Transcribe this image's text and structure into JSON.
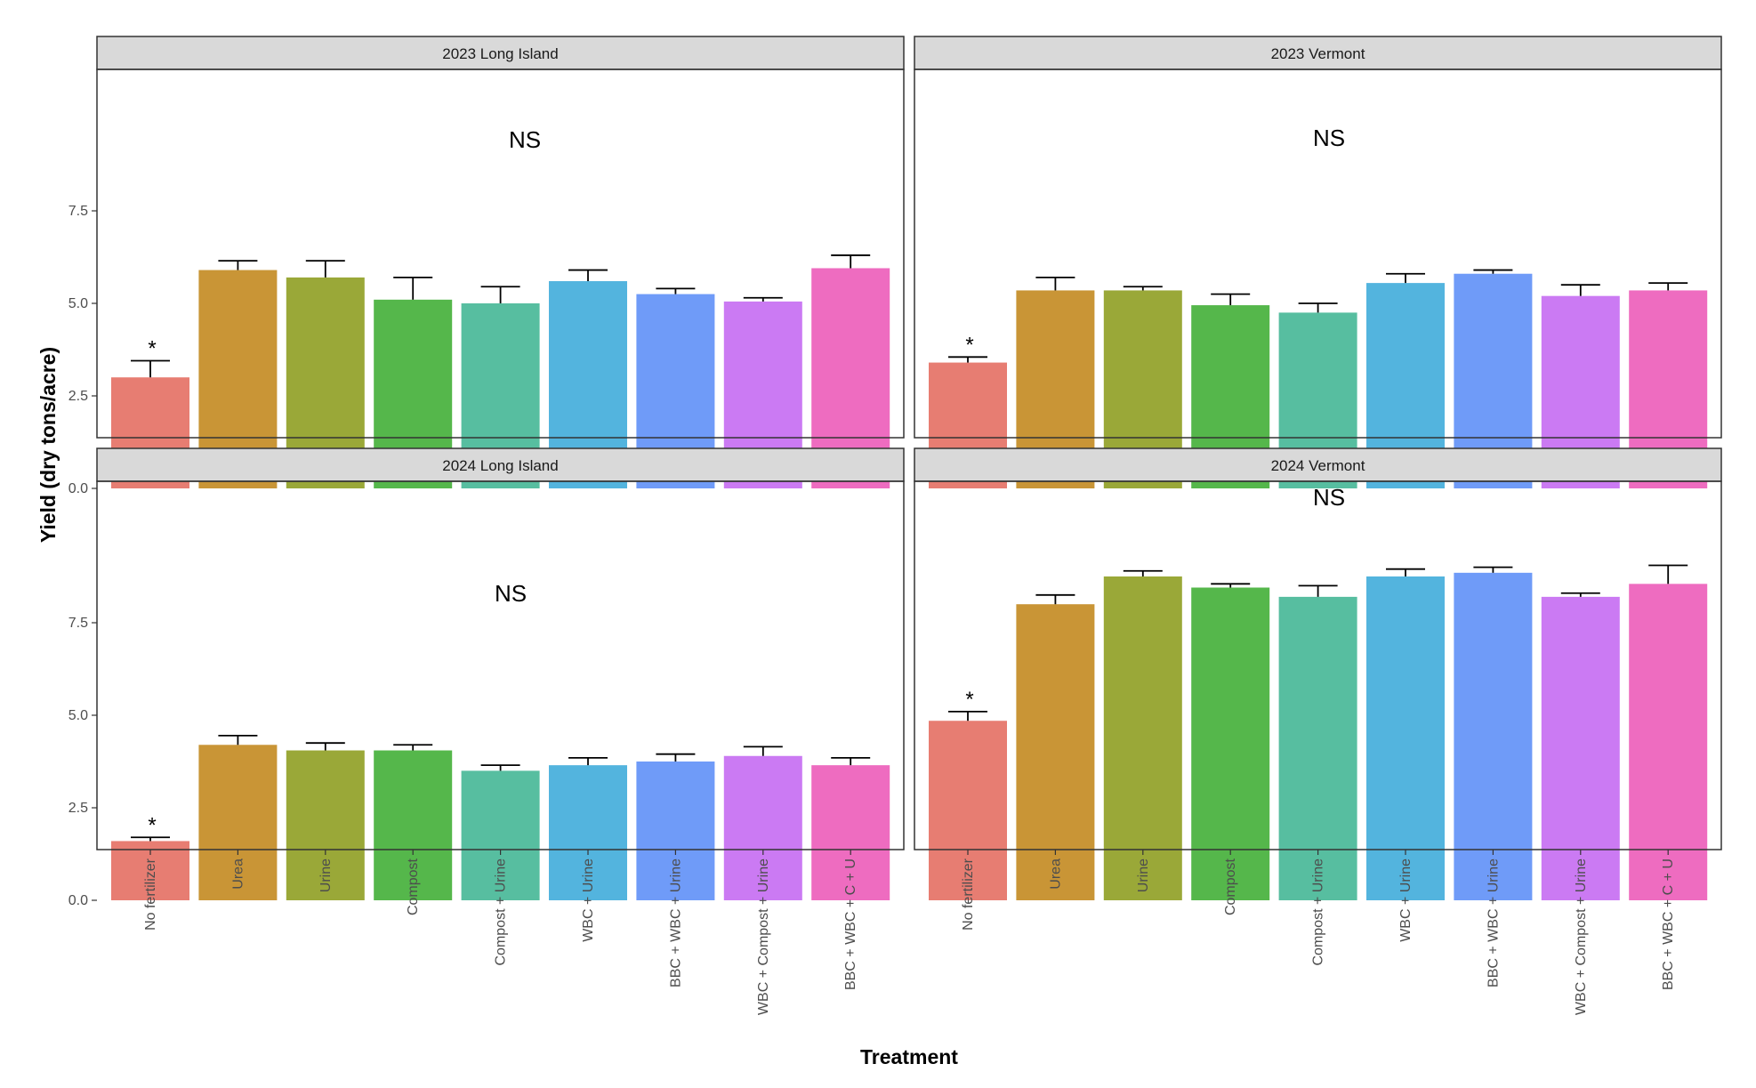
{
  "chart_data": {
    "type": "bar",
    "ylabel": "Yield (dry tons/acre)",
    "xlabel": "Treatment",
    "ylim": [
      0,
      9.5
    ],
    "yticks": [
      "0.0",
      "2.5",
      "5.0",
      "7.5"
    ],
    "grid": false,
    "legend": "none",
    "categories": [
      "No fertilizer",
      "Urea",
      "Urine",
      "Compost",
      "Compost + Urine",
      "WBC + Urine",
      "BBC + WBC + Urine",
      "WBC + Compost + Urine",
      "BBC + WBC + C + U"
    ],
    "colors": [
      "#E77D72",
      "#C99536",
      "#9AA838",
      "#55B74B",
      "#57BEA0",
      "#53B4DE",
      "#6F9BF8",
      "#CB7AF3",
      "#EE6CC0"
    ],
    "panels": [
      {
        "title": "2023 Long Island",
        "annotation": "NS",
        "star": "*",
        "values": [
          3.0,
          5.9,
          5.7,
          5.1,
          5.0,
          5.6,
          5.25,
          5.05,
          5.95
        ],
        "error": [
          0.45,
          0.25,
          0.45,
          0.6,
          0.45,
          0.3,
          0.15,
          0.1,
          0.35
        ]
      },
      {
        "title": "2023 Vermont",
        "annotation": "NS",
        "star": "*",
        "values": [
          3.4,
          5.35,
          5.35,
          4.95,
          4.75,
          5.55,
          5.8,
          5.2,
          5.35
        ],
        "error": [
          0.15,
          0.35,
          0.1,
          0.3,
          0.25,
          0.25,
          0.1,
          0.3,
          0.2
        ]
      },
      {
        "title": "2024 Long Island",
        "annotation": "NS",
        "star": "*",
        "values": [
          1.6,
          4.2,
          4.05,
          4.05,
          3.5,
          3.65,
          3.75,
          3.9,
          3.65
        ],
        "error": [
          0.1,
          0.25,
          0.2,
          0.15,
          0.15,
          0.2,
          0.2,
          0.25,
          0.2
        ]
      },
      {
        "title": "2024 Vermont",
        "annotation": "NS",
        "star": "*",
        "values": [
          4.85,
          8.0,
          8.75,
          8.45,
          8.2,
          8.75,
          8.85,
          8.2,
          8.55
        ],
        "error": [
          0.25,
          0.25,
          0.15,
          0.1,
          0.3,
          0.2,
          0.15,
          0.1,
          0.5
        ]
      }
    ]
  }
}
